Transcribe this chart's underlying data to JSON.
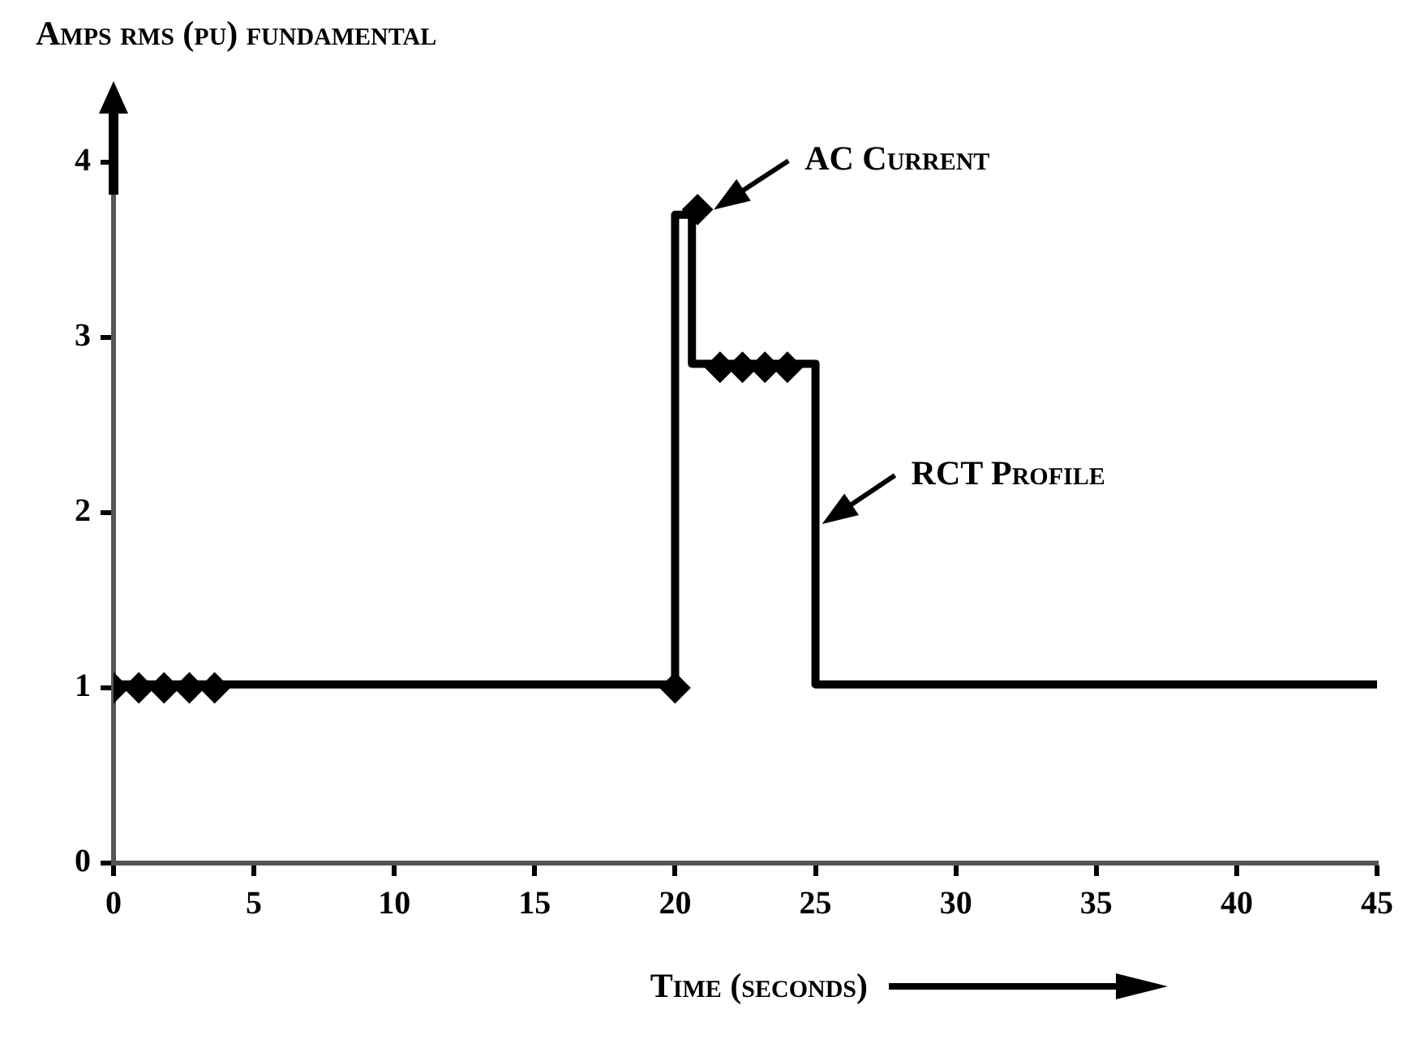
{
  "chart_data": {
    "type": "line",
    "ylabel": "Amps rms (pu) fundamental",
    "xlabel": "Time (seconds)",
    "xlim": [
      0,
      45
    ],
    "xticks": [
      0,
      5,
      10,
      15,
      20,
      25,
      30,
      35,
      40,
      45
    ],
    "ylim": [
      0,
      4
    ],
    "yticks": [
      0,
      1,
      2,
      3,
      4
    ],
    "grid": false,
    "legend": false,
    "series": [
      {
        "name": "RCT Profile",
        "color": "#000000",
        "marker": "none",
        "line_style": "solid",
        "x": [
          0,
          20,
          20,
          20.6,
          20.6,
          25,
          25,
          45
        ],
        "values": [
          1.02,
          1.02,
          3.7,
          3.7,
          2.85,
          2.85,
          1.02,
          1.02
        ]
      },
      {
        "name": "AC Current",
        "type": "scatter",
        "color": "#000000",
        "marker": "diamond",
        "x": [
          0,
          0.9,
          1.8,
          2.7,
          3.6,
          20,
          20.8,
          21.6,
          22.4,
          23.2,
          24
        ],
        "values": [
          1.0,
          1.0,
          1.0,
          1.0,
          1.0,
          1.0,
          3.73,
          2.83,
          2.83,
          2.83,
          2.83
        ]
      }
    ]
  }
}
